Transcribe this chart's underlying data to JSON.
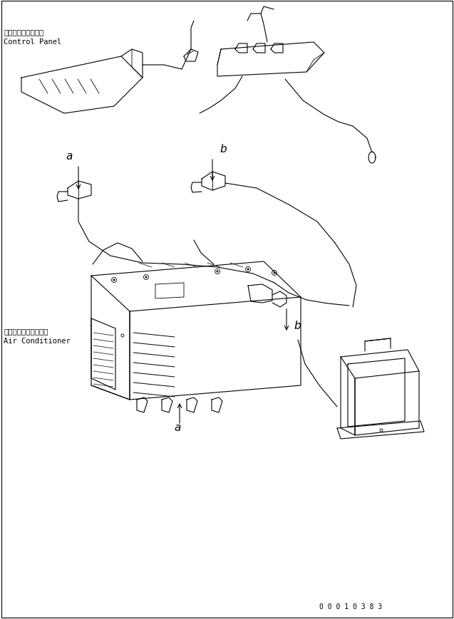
{
  "bg_color": "#ffffff",
  "line_color": "#000000",
  "text_color": "#000000",
  "fig_width": 6.37,
  "fig_height": 8.7,
  "dpi": 100,
  "label_control_panel_jp": "コントロールパネル",
  "label_control_panel_en": "Control Panel",
  "label_air_cond_jp": "エアーコンディショナ",
  "label_air_cond_en": "Air Conditioner",
  "part_number": "0 0 0 1 0 3 8 3",
  "label_a1": "a",
  "label_b1": "b",
  "label_a2": "a",
  "label_b2": "b"
}
